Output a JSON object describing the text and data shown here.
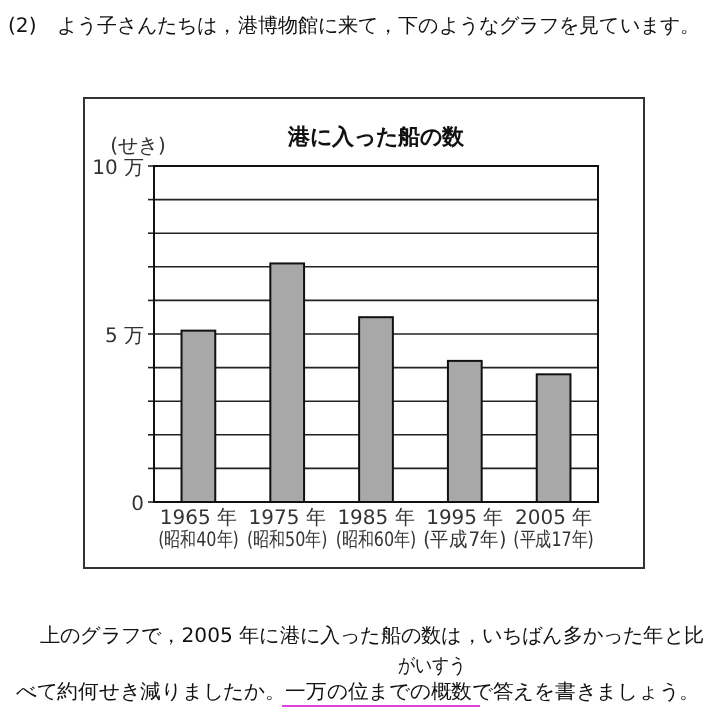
{
  "chart_data": {
    "type": "bar",
    "title": "港に入った船の数",
    "ylabel": "(せき)",
    "categories": [
      "1965 年\n(昭和40年)",
      "1975 年\n(昭和50年)",
      "1985 年\n(昭和60年)",
      "1995 年\n(平成7年)",
      "2005 年\n(平成17年)"
    ],
    "values": [
      5.1,
      7.1,
      5.5,
      4.2,
      3.8
    ],
    "color": "#a8a8a8",
    "ylim": [
      0,
      10
    ],
    "yticks": [
      0,
      {
        "value": 1,
        "label": null
      },
      {
        "value": 2,
        "label": null
      },
      {
        "value": 3,
        "label": null
      },
      {
        "value": 4,
        "label": null
      },
      {
        "value": 5,
        "label": "5 万"
      },
      {
        "value": 6,
        "label": null
      },
      {
        "value": 7,
        "label": null
      },
      {
        "value": 8,
        "label": null
      },
      {
        "value": 9,
        "label": null
      },
      {
        "value": 10,
        "label": "10 万"
      }
    ],
    "grid": "y",
    "annotations": [
      "(2)　よう子さんたちは，港博物館に来て，下のようなグラフを見ています。",
      "上のグラフで，2005 年に港に入った船の数は，いちばん多かった年と比",
      "べて約何せき減りましたか。一万の位までの概数で答えを書きましょう。",
      "がいすう"
    ]
  }
}
